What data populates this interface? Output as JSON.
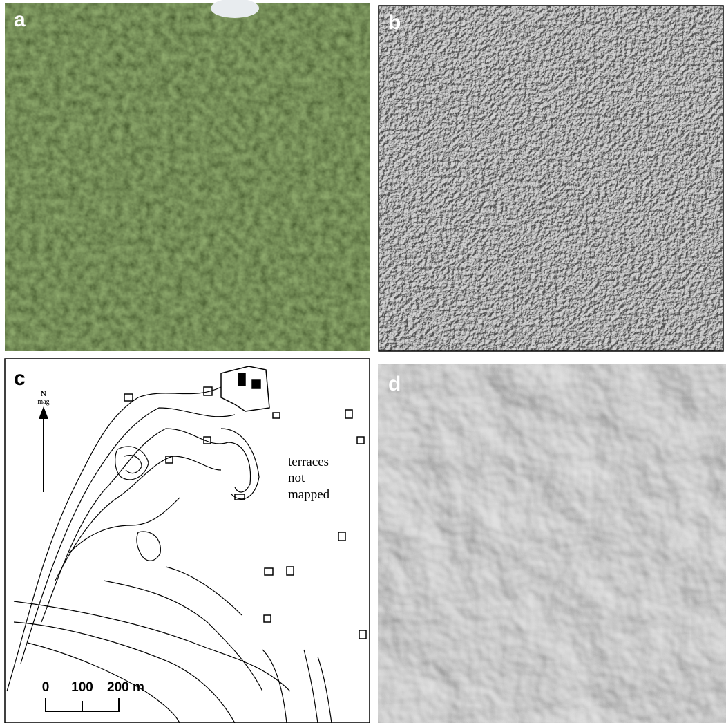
{
  "panels": [
    {
      "label": "a"
    },
    {
      "label": "b"
    },
    {
      "label": "c",
      "north": "N",
      "north_sub": "mag",
      "note": [
        "terraces",
        "not",
        "mapped"
      ],
      "scale": [
        "0",
        "100",
        "200 m"
      ]
    },
    {
      "label": "d"
    }
  ]
}
